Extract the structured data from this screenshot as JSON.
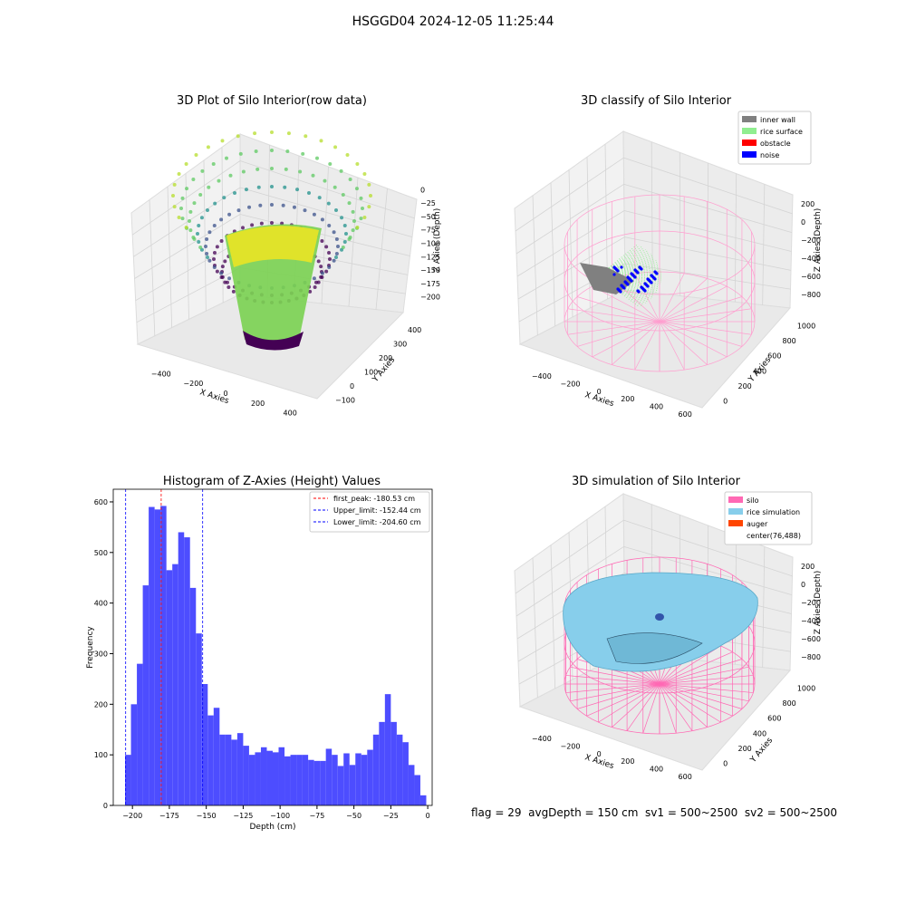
{
  "suptitle": "HSGGD04 2024-12-05 11:25:44",
  "status_text": "flag = 29  avgDepth = 150 cm  sv1 = 500~2500  sv2 = 500~2500",
  "colors": {
    "hist_bar": "#4d4dff",
    "first_peak": "#ff0000",
    "limit": "#0000ff",
    "inner_wall": "#808080",
    "rice_surface": "#90ee90",
    "obstacle": "#ff0000",
    "noise": "#0000ff",
    "silo": "#ff69b4",
    "rice_simulation": "#87ceeb",
    "auger": "#ff4500",
    "wire": "#ff9ecf"
  },
  "chart_data": [
    {
      "type": "scatter",
      "title": "3D Plot of Silo Interior(row data)",
      "xlabel": "X Axies",
      "ylabel": "Y Axies",
      "zlabel": "Z Axies (Depth)",
      "xticks": [
        "−400",
        "−200",
        "0",
        "200",
        "400"
      ],
      "yticks": [
        "−100",
        "0",
        "100",
        "200",
        "300",
        "400"
      ],
      "zticks": [
        "0",
        "−25",
        "−50",
        "−75",
        "−100",
        "−125",
        "−150",
        "−175",
        "−200"
      ],
      "colormap": "viridis"
    },
    {
      "type": "scatter",
      "title": "3D classify of Silo Interior",
      "xlabel": "X Axies",
      "ylabel": "Y Axies",
      "zlabel": "Z Axies (Depth)",
      "xticks": [
        "−400",
        "−200",
        "0",
        "200",
        "400",
        "600"
      ],
      "yticks": [
        "0",
        "200",
        "400",
        "600",
        "800",
        "1000"
      ],
      "zticks": [
        "200",
        "0",
        "−200",
        "−400",
        "−600",
        "−800"
      ],
      "legend": [
        "inner wall",
        "rice surface",
        "obstacle",
        "noise"
      ],
      "legend_position": "top-right"
    },
    {
      "type": "bar",
      "title": "Histogram of Z-Axies (Height) Values",
      "xlabel": "Depth (cm)",
      "ylabel": "Frequency",
      "xlim": [
        -213,
        3
      ],
      "ylim": [
        0,
        625
      ],
      "xticks": [
        -200,
        -175,
        -150,
        -125,
        -100,
        -75,
        -50,
        -25,
        0
      ],
      "xtick_labels": [
        "−200",
        "−175",
        "−150",
        "−125",
        "−100",
        "−75",
        "−50",
        "−25",
        "0"
      ],
      "yticks": [
        0,
        100,
        200,
        300,
        400,
        500,
        600
      ],
      "bin_start": -205,
      "bin_width": 4,
      "values": [
        100,
        200,
        280,
        435,
        590,
        585,
        592,
        465,
        477,
        540,
        530,
        430,
        340,
        240,
        178,
        193,
        140,
        140,
        130,
        143,
        118,
        100,
        105,
        115,
        108,
        105,
        115,
        97,
        100,
        100,
        100,
        90,
        88,
        88,
        112,
        100,
        78,
        103,
        80,
        103,
        100,
        110,
        140,
        165,
        220,
        165,
        140,
        125,
        80,
        60,
        20
      ],
      "vlines": [
        {
          "label": "first_peak: -180.53 cm",
          "x": -180.53,
          "color": "#ff0000"
        },
        {
          "label": "Upper_limit: -152.44 cm",
          "x": -152.44,
          "color": "#0000ff"
        },
        {
          "label": "Lower_limit: -204.60 cm",
          "x": -204.6,
          "color": "#0000ff"
        }
      ],
      "legend_position": "top-right"
    },
    {
      "type": "scatter",
      "title": "3D simulation of Silo Interior",
      "xlabel": "X Axies",
      "ylabel": "Y Axies",
      "zlabel": "Z Axies (Depth)",
      "xticks": [
        "−400",
        "−200",
        "0",
        "200",
        "400",
        "600"
      ],
      "yticks": [
        "0",
        "200",
        "400",
        "600",
        "800",
        "1000"
      ],
      "zticks": [
        "200",
        "0",
        "−200",
        "−400",
        "−600",
        "−800"
      ],
      "legend": [
        "silo",
        "rice simulation",
        "auger",
        "center(76,488)"
      ],
      "legend_position": "top-right"
    }
  ]
}
